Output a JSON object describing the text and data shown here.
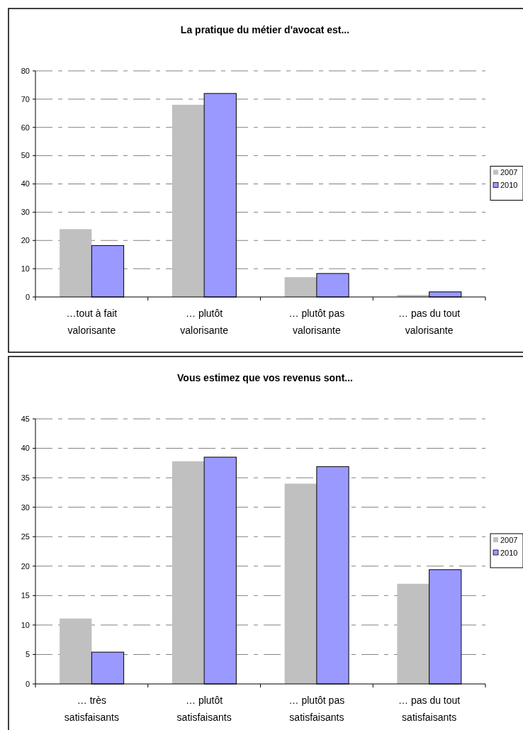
{
  "chart_data": [
    {
      "type": "bar",
      "title": "La pratique du métier d'avocat est...",
      "categories": [
        "…tout à fait valorisante",
        "… plutôt valorisante",
        "… plutôt pas valorisante",
        "… pas du tout valorisante"
      ],
      "series": [
        {
          "name": "2007",
          "color": "#c0c0c0",
          "values": [
            24,
            68,
            7,
            0.7
          ]
        },
        {
          "name": "2010",
          "color": "#9999ff",
          "values": [
            18.2,
            72,
            8.3,
            1.8
          ]
        }
      ],
      "ylim": [
        0,
        80
      ],
      "yticks": [
        0,
        10,
        20,
        30,
        40,
        50,
        60,
        70,
        80
      ],
      "grid": "y",
      "legend": "right"
    },
    {
      "type": "bar",
      "title": "Vous estimez que vos revenus sont...",
      "categories": [
        "… très satisfaisants",
        "… plutôt satisfaisants",
        "… plutôt pas satisfaisants",
        "… pas du tout satisfaisants"
      ],
      "series": [
        {
          "name": "2007",
          "color": "#c0c0c0",
          "values": [
            11.1,
            37.8,
            34.0,
            17.0
          ]
        },
        {
          "name": "2010",
          "color": "#9999ff",
          "values": [
            5.4,
            38.5,
            36.9,
            19.4
          ]
        }
      ],
      "ylim": [
        0,
        45
      ],
      "yticks": [
        0,
        5,
        10,
        15,
        20,
        25,
        30,
        35,
        40,
        45
      ],
      "grid": "y",
      "legend": "right"
    }
  ]
}
